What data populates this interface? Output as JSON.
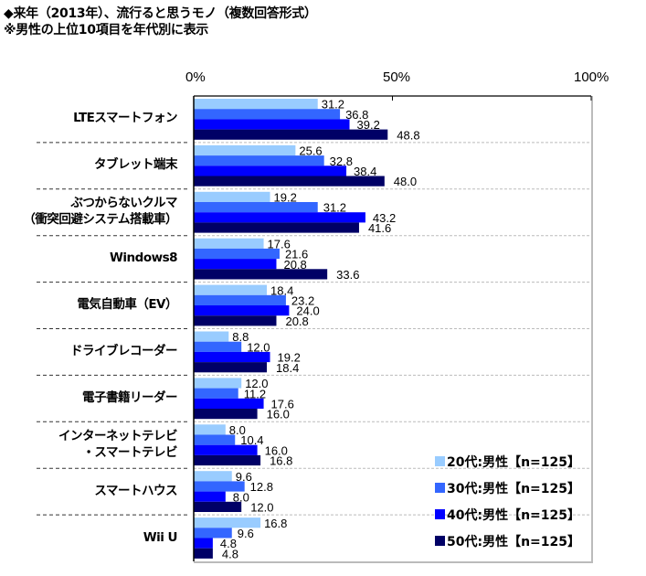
{
  "chart_data": {
    "type": "bar",
    "orientation": "horizontal",
    "title": "◆来年（2013年）、流行ると思うモノ（複数回答形式）",
    "subtitle": "※男性の上位10項目を年代別に表示",
    "xlim": [
      0,
      100
    ],
    "xticks": [
      "0%",
      "50%",
      "100%"
    ],
    "categories": [
      [
        "LTEスマートフォン"
      ],
      [
        "タブレット端末"
      ],
      [
        "ぶつからないクルマ",
        "（衝突回避システム搭載車）"
      ],
      [
        "Windows8"
      ],
      [
        "電気自動車（EV）"
      ],
      [
        "ドライブレコーダー"
      ],
      [
        "電子書籍リーダー"
      ],
      [
        "インターネットテレビ",
        "・スマートテレビ"
      ],
      [
        "スマートハウス"
      ],
      [
        "Wii U"
      ]
    ],
    "series": [
      {
        "name": "20代:男性【n=125】",
        "color": "#99ccff",
        "values": [
          31.2,
          25.6,
          19.2,
          17.6,
          18.4,
          8.8,
          12.0,
          8.0,
          9.6,
          16.8
        ]
      },
      {
        "name": "30代:男性【n=125】",
        "color": "#3366ff",
        "values": [
          36.8,
          32.8,
          31.2,
          21.6,
          23.2,
          12.0,
          11.2,
          10.4,
          12.8,
          9.6
        ]
      },
      {
        "name": "40代:男性【n=125】",
        "color": "#0000ff",
        "values": [
          39.2,
          38.4,
          43.2,
          20.8,
          24.0,
          19.2,
          17.6,
          16.0,
          8.0,
          4.8
        ]
      },
      {
        "name": "50代:男性【n=125】",
        "color": "#000066",
        "values": [
          48.8,
          48.0,
          41.6,
          33.6,
          20.8,
          18.4,
          16.0,
          16.8,
          12.0,
          4.8
        ]
      }
    ],
    "legend": "bottom-right",
    "grid": false
  }
}
